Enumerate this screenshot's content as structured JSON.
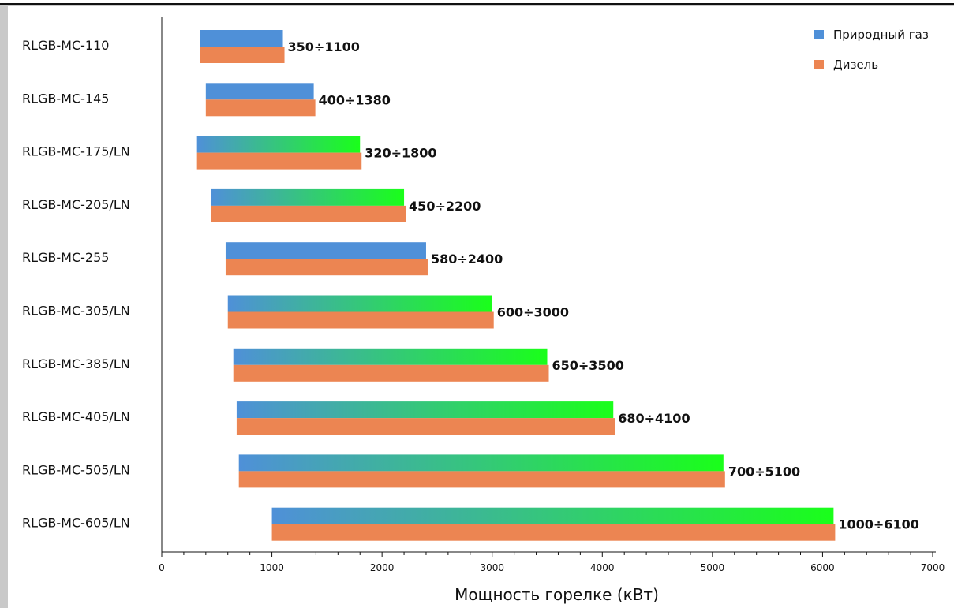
{
  "chart_data": {
    "type": "bar",
    "orientation": "horizontal",
    "categories": [
      "RLGB-MC-110",
      "RLGB-MC-145",
      "RLGB-MC-175/LN",
      "RLGB-MC-205/LN",
      "RLGB-MC-255",
      "RLGB-MC-305/LN",
      "RLGB-MC-385/LN",
      "RLGB-MC-405/LN",
      "RLGB-MC-505/LN",
      "RLGB-MC-605/LN"
    ],
    "series": [
      {
        "name": "Природный газ",
        "color": "#4f90d8",
        "ranges": [
          [
            350,
            1100
          ],
          [
            400,
            1380
          ],
          [
            320,
            1800
          ],
          [
            450,
            2200
          ],
          [
            580,
            2400
          ],
          [
            600,
            3000
          ],
          [
            650,
            3500
          ],
          [
            680,
            4100
          ],
          [
            700,
            5100
          ],
          [
            1000,
            6100
          ]
        ]
      },
      {
        "name": "Дизель",
        "color": "#ec8552",
        "ranges": [
          [
            350,
            1100
          ],
          [
            400,
            1380
          ],
          [
            320,
            1800
          ],
          [
            450,
            2200
          ],
          [
            580,
            2400
          ],
          [
            600,
            3000
          ],
          [
            650,
            3500
          ],
          [
            680,
            4100
          ],
          [
            700,
            5100
          ],
          [
            1000,
            6100
          ]
        ]
      }
    ],
    "gradient_bars": [
      false,
      false,
      true,
      true,
      false,
      true,
      true,
      true,
      true,
      true
    ],
    "gradient_end_color": "#1aff1a",
    "range_labels": [
      "350÷1100",
      "400÷1380",
      "320÷1800",
      "450÷2200",
      "580÷2400",
      "600÷3000",
      "650÷3500",
      "680÷4100",
      "700÷5100",
      "1000÷6100"
    ],
    "xlabel": "Мощность горелке (кВт)",
    "ylabel": "",
    "xlim": [
      0,
      7000
    ],
    "xticks": [
      "0",
      "1000",
      "2000",
      "3000",
      "4000",
      "5000",
      "6000",
      "7000"
    ],
    "grid": false,
    "legend_position": "top-right"
  }
}
